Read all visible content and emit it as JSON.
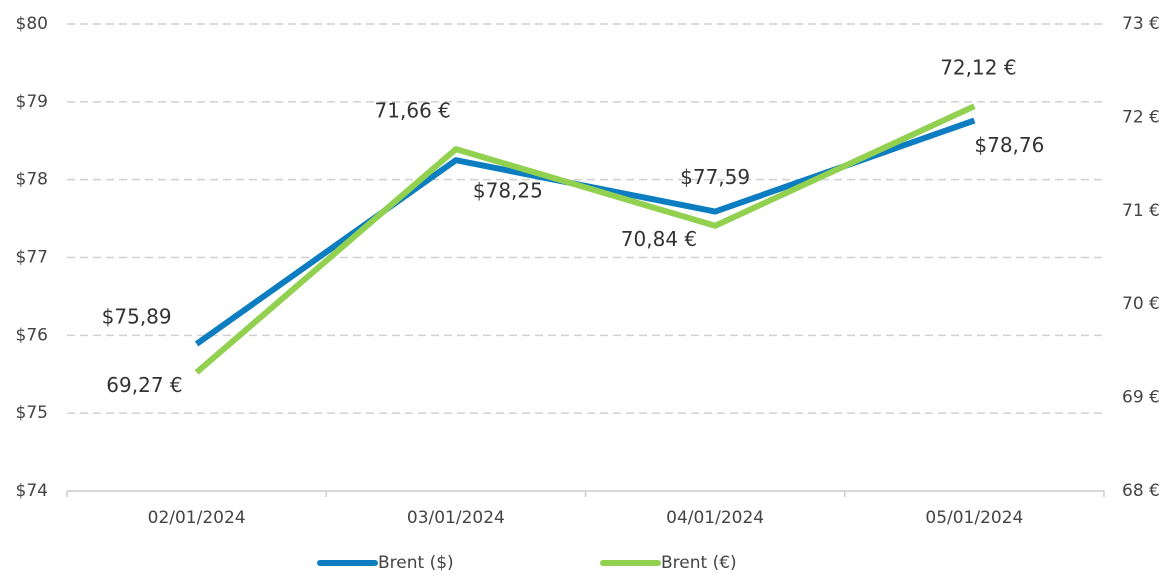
{
  "chart_data": {
    "type": "line",
    "categories": [
      "02/01/2024",
      "03/01/2024",
      "04/01/2024",
      "05/01/2024"
    ],
    "series": [
      {
        "name": "Brent ($)",
        "color": "#0b7dc0",
        "values": [
          75.89,
          78.25,
          77.59,
          78.76
        ],
        "value_labels": [
          "$75,89",
          "$78,25",
          "$77,59",
          "$78,76"
        ]
      },
      {
        "name": "Brent (€)",
        "color": "#92d050",
        "axis": "y2",
        "values": [
          69.27,
          71.66,
          70.84,
          72.12
        ],
        "value_labels": [
          "69,27 €",
          "71,66 €",
          "70,84 €",
          "72,12 €"
        ]
      }
    ],
    "ylim": [
      74,
      80
    ],
    "yticks": [
      {
        "value": 74,
        "label": "$74"
      },
      {
        "value": 75,
        "label": "$75"
      },
      {
        "value": 76,
        "label": "$76"
      },
      {
        "value": 77,
        "label": "$77"
      },
      {
        "value": 78,
        "label": "$78"
      },
      {
        "value": 79,
        "label": "$79"
      },
      {
        "value": 80,
        "label": "$80"
      }
    ],
    "y2lim": [
      68,
      73
    ],
    "y2ticks": [
      {
        "value": 68,
        "label": "68 €"
      },
      {
        "value": 69,
        "label": "69 €"
      },
      {
        "value": 70,
        "label": "70 €"
      },
      {
        "value": 71,
        "label": "71 €"
      },
      {
        "value": 72,
        "label": "72 €"
      },
      {
        "value": 73,
        "label": "73 €"
      }
    ],
    "grid": true,
    "legend": "bottom"
  }
}
